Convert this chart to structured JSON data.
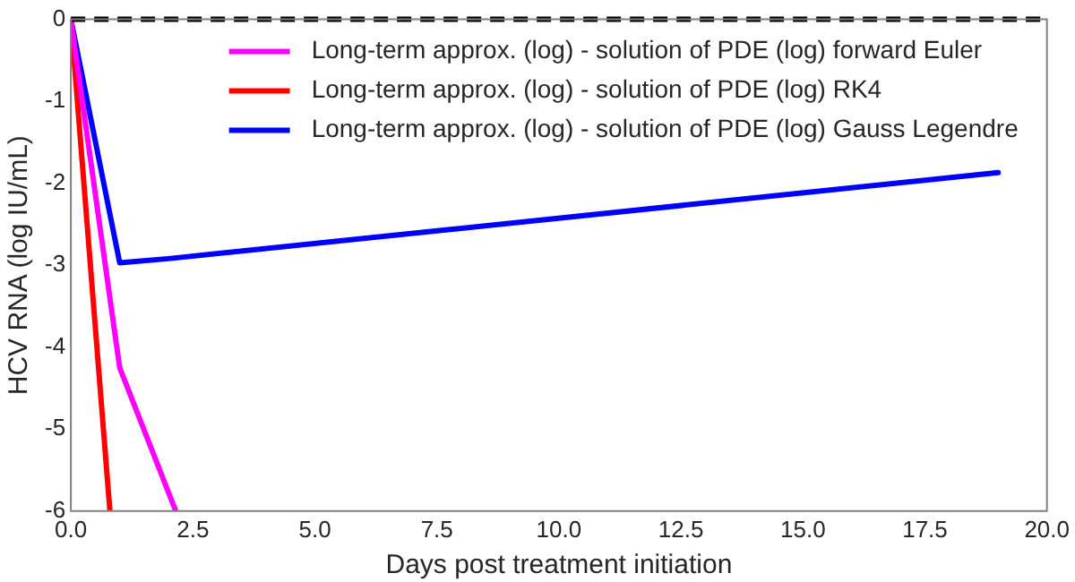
{
  "chart_data": {
    "type": "line",
    "xlabel": "Days post treatment initiation",
    "ylabel": "HCV RNA (log IU/mL)",
    "xlim": [
      0,
      20
    ],
    "xticks": [
      {
        "value": 0,
        "label": "0.0"
      },
      {
        "value": 2.5,
        "label": "2.5"
      },
      {
        "value": 5,
        "label": "5.0"
      },
      {
        "value": 7.5,
        "label": "7.5"
      },
      {
        "value": 10,
        "label": "10.0"
      },
      {
        "value": 12.5,
        "label": "12.5"
      },
      {
        "value": 15,
        "label": "15.0"
      },
      {
        "value": 17.5,
        "label": "17.5"
      },
      {
        "value": 20,
        "label": "20.0"
      }
    ],
    "ylim": [
      -6,
      0
    ],
    "yticks": [
      -6,
      -5,
      -4,
      -3,
      -2,
      -1,
      0
    ],
    "grid": false,
    "legend": "top right",
    "marker": "none",
    "line_style": "solid",
    "series": [
      {
        "name": "Long-term approx. (log) - solution of PDE (log) forward Euler",
        "color": "#ff00ff",
        "x": [
          0,
          1,
          2.15
        ],
        "values": [
          0,
          -4.25,
          -6
        ]
      },
      {
        "name": "Long-term approx. (log) - solution of PDE (log) RK4",
        "color": "#ff0000",
        "x": [
          0,
          0.8
        ],
        "values": [
          0,
          -6
        ]
      },
      {
        "name": "Long-term approx. (log) - solution of PDE (log) Gauss Legendre",
        "color": "#0000ff",
        "x": [
          0,
          1,
          2,
          19
        ],
        "values": [
          0,
          -2.97,
          -2.92,
          -1.87
        ]
      }
    ],
    "ref_lines": [
      {
        "axis": "y",
        "value": 0,
        "color": "#000000",
        "line_style": "dashed"
      }
    ]
  }
}
